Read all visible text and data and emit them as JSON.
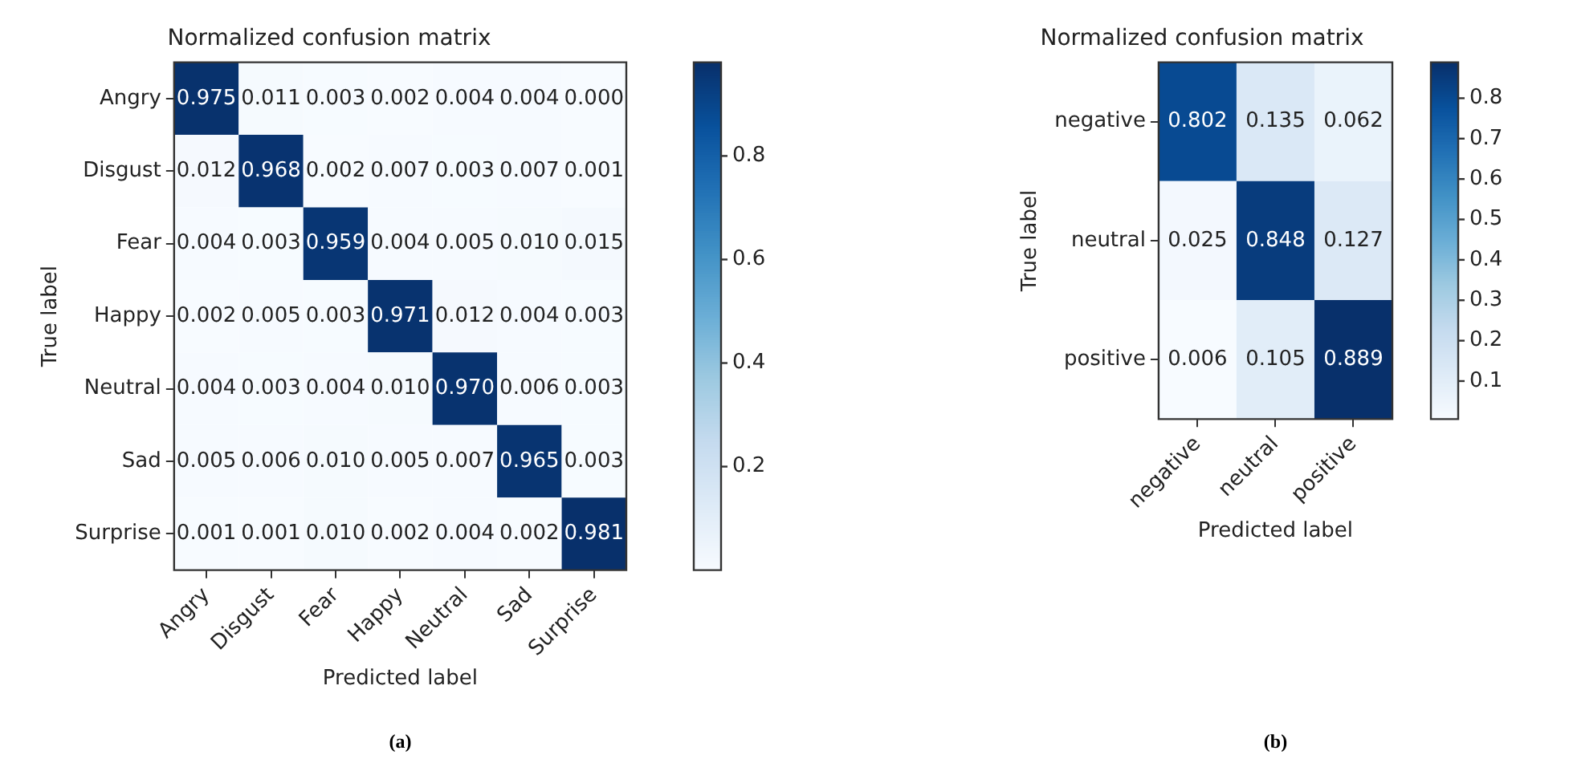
{
  "chart_data": [
    {
      "type": "heatmap",
      "title": "Normalized confusion matrix",
      "xlabel": "Predicted label",
      "ylabel": "True label",
      "categories": [
        "Angry",
        "Disgust",
        "Fear",
        "Happy",
        "Neutral",
        "Sad",
        "Surprise"
      ],
      "y_categories": [
        "Angry",
        "Disgust",
        "Fear",
        "Happy",
        "Neutral",
        "Sad",
        "Surprise"
      ],
      "cells": [
        [
          0.975,
          0.011,
          0.003,
          0.002,
          0.004,
          0.004,
          0.0
        ],
        [
          0.012,
          0.968,
          0.002,
          0.007,
          0.003,
          0.007,
          0.001
        ],
        [
          0.004,
          0.003,
          0.959,
          0.004,
          0.005,
          0.01,
          0.015
        ],
        [
          0.002,
          0.005,
          0.003,
          0.971,
          0.012,
          0.004,
          0.003
        ],
        [
          0.004,
          0.003,
          0.004,
          0.01,
          0.97,
          0.006,
          0.003
        ],
        [
          0.005,
          0.006,
          0.01,
          0.005,
          0.007,
          0.965,
          0.003
        ],
        [
          0.001,
          0.001,
          0.01,
          0.002,
          0.004,
          0.002,
          0.981
        ]
      ],
      "cell_labels": [
        [
          "0.975",
          "0.011",
          "0.003",
          "0.002",
          "0.004",
          "0.004",
          "0.000"
        ],
        [
          "0.012",
          "0.968",
          "0.002",
          "0.007",
          "0.003",
          "0.007",
          "0.001"
        ],
        [
          "0.004",
          "0.003",
          "0.959",
          "0.004",
          "0.005",
          "0.010",
          "0.015"
        ],
        [
          "0.002",
          "0.005",
          "0.003",
          "0.971",
          "0.012",
          "0.004",
          "0.003"
        ],
        [
          "0.004",
          "0.003",
          "0.004",
          "0.010",
          "0.970",
          "0.006",
          "0.003"
        ],
        [
          "0.005",
          "0.006",
          "0.010",
          "0.005",
          "0.007",
          "0.965",
          "0.003"
        ],
        [
          "0.001",
          "0.001",
          "0.010",
          "0.002",
          "0.004",
          "0.002",
          "0.981"
        ]
      ],
      "clim": [
        0.0,
        0.981
      ],
      "cticks": [
        0.2,
        0.4,
        0.6,
        0.8
      ],
      "annotations": [
        "(a)"
      ]
    },
    {
      "type": "heatmap",
      "title": "Normalized confusion matrix",
      "xlabel": "Predicted label",
      "ylabel": "True label",
      "categories": [
        "negative",
        "neutral",
        "positive"
      ],
      "y_categories": [
        "negative",
        "neutral",
        "positive"
      ],
      "cells": [
        [
          0.802,
          0.135,
          0.062
        ],
        [
          0.025,
          0.848,
          0.127
        ],
        [
          0.006,
          0.105,
          0.889
        ]
      ],
      "cell_labels": [
        [
          "0.802",
          "0.135",
          "0.062"
        ],
        [
          "0.025",
          "0.848",
          "0.127"
        ],
        [
          "0.006",
          "0.105",
          "0.889"
        ]
      ],
      "clim": [
        0.006,
        0.889
      ],
      "cticks": [
        0.1,
        0.2,
        0.3,
        0.4,
        0.5,
        0.6,
        0.7,
        0.8
      ],
      "annotations": [
        "(b)"
      ]
    }
  ]
}
